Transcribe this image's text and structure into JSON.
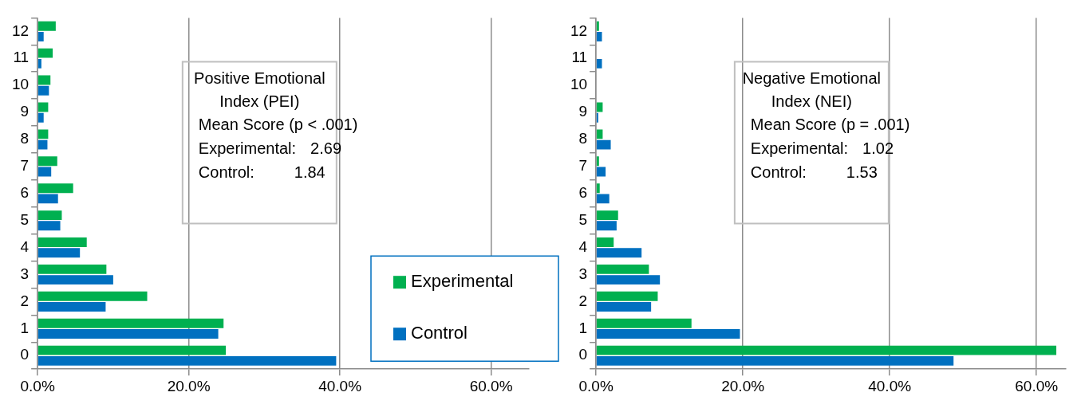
{
  "chart_data": [
    {
      "type": "bar",
      "orientation": "horizontal",
      "categories": [
        "12",
        "11",
        "10",
        "9",
        "8",
        "7",
        "6",
        "5",
        "4",
        "3",
        "2",
        "1",
        "0"
      ],
      "series": [
        {
          "name": "Experimental",
          "color": "#00b050",
          "values": [
            2.4,
            2.0,
            1.7,
            1.4,
            1.4,
            2.6,
            4.7,
            3.2,
            6.5,
            9.1,
            14.5,
            24.6,
            24.9
          ]
        },
        {
          "name": "Control",
          "color": "#0070c0",
          "values": [
            0.8,
            0.5,
            1.5,
            0.8,
            1.3,
            1.8,
            2.7,
            3.0,
            5.6,
            10.0,
            9.0,
            23.9,
            39.5
          ]
        }
      ],
      "xlim": [
        0,
        65
      ],
      "xticks": [
        {
          "value": 0,
          "label": "0.0%"
        },
        {
          "value": 20,
          "label": "20.0%"
        },
        {
          "value": 40,
          "label": "40.0%"
        },
        {
          "value": 60,
          "label": "60.0%"
        }
      ],
      "grid": "x",
      "legend": "bottom right",
      "annotations": [
        "Positive Emotional Index (PEI)",
        "Mean Score (p < .001)",
        "Experimental: 2.69",
        "Control: 1.84"
      ]
    },
    {
      "type": "bar",
      "orientation": "horizontal",
      "categories": [
        "12",
        "11",
        "10",
        "9",
        "8",
        "7",
        "6",
        "5",
        "4",
        "3",
        "2",
        "1",
        "0"
      ],
      "series": [
        {
          "color": "#00b050",
          "values": [
            0.4,
            0,
            0,
            0.9,
            0.9,
            0.4,
            0.5,
            3.0,
            2.4,
            7.2,
            8.4,
            13.0,
            62.7
          ]
        },
        {
          "color": "#0070c0",
          "values": [
            0.8,
            0.8,
            0,
            0.3,
            2.0,
            1.3,
            1.8,
            2.8,
            6.2,
            8.7,
            7.5,
            19.6,
            48.7
          ]
        }
      ],
      "xlim": [
        0,
        64
      ],
      "xticks": [
        {
          "value": 0,
          "label": "0.0%"
        },
        {
          "value": 20,
          "label": "20.0%"
        },
        {
          "value": 40,
          "label": "40.0%"
        },
        {
          "value": 60,
          "label": "60.0%"
        }
      ],
      "grid": "x",
      "annotations": [
        "Negative Emotional Index (NEI)",
        "Mean Score (p = .001)",
        "Experimental: 1.02",
        "Control: 1.53"
      ]
    }
  ]
}
